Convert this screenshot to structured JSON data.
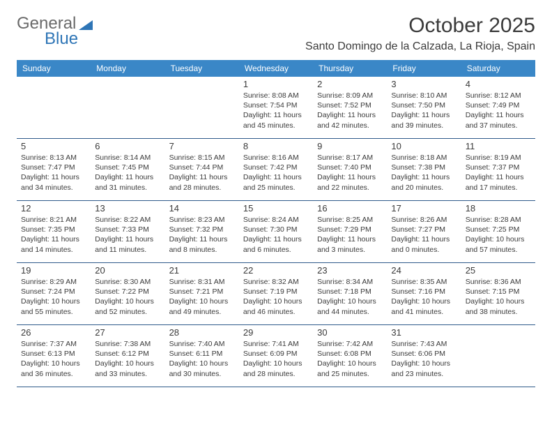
{
  "brand": {
    "general": "General",
    "blue": "Blue"
  },
  "title": "October 2025",
  "subtitle": "Santo Domingo de la Calzada, La Rioja, Spain",
  "colors": {
    "header_bg": "#3a87c7",
    "header_text": "#ffffff",
    "row_border": "#2e5a8a",
    "text": "#3a3a3a",
    "logo_gray": "#6a6a6a",
    "logo_blue": "#2e75b6",
    "page_bg": "#ffffff"
  },
  "typography": {
    "title_fontsize": 30,
    "subtitle_fontsize": 16,
    "header_fontsize": 12,
    "daynum_fontsize": 13,
    "info_fontsize": 10.5
  },
  "calendar": {
    "type": "table",
    "columns": [
      "Sunday",
      "Monday",
      "Tuesday",
      "Wednesday",
      "Thursday",
      "Friday",
      "Saturday"
    ],
    "rows": [
      [
        null,
        null,
        null,
        {
          "day": "1",
          "sunrise": "Sunrise: 8:08 AM",
          "sunset": "Sunset: 7:54 PM",
          "daylight": "Daylight: 11 hours and 45 minutes."
        },
        {
          "day": "2",
          "sunrise": "Sunrise: 8:09 AM",
          "sunset": "Sunset: 7:52 PM",
          "daylight": "Daylight: 11 hours and 42 minutes."
        },
        {
          "day": "3",
          "sunrise": "Sunrise: 8:10 AM",
          "sunset": "Sunset: 7:50 PM",
          "daylight": "Daylight: 11 hours and 39 minutes."
        },
        {
          "day": "4",
          "sunrise": "Sunrise: 8:12 AM",
          "sunset": "Sunset: 7:49 PM",
          "daylight": "Daylight: 11 hours and 37 minutes."
        }
      ],
      [
        {
          "day": "5",
          "sunrise": "Sunrise: 8:13 AM",
          "sunset": "Sunset: 7:47 PM",
          "daylight": "Daylight: 11 hours and 34 minutes."
        },
        {
          "day": "6",
          "sunrise": "Sunrise: 8:14 AM",
          "sunset": "Sunset: 7:45 PM",
          "daylight": "Daylight: 11 hours and 31 minutes."
        },
        {
          "day": "7",
          "sunrise": "Sunrise: 8:15 AM",
          "sunset": "Sunset: 7:44 PM",
          "daylight": "Daylight: 11 hours and 28 minutes."
        },
        {
          "day": "8",
          "sunrise": "Sunrise: 8:16 AM",
          "sunset": "Sunset: 7:42 PM",
          "daylight": "Daylight: 11 hours and 25 minutes."
        },
        {
          "day": "9",
          "sunrise": "Sunrise: 8:17 AM",
          "sunset": "Sunset: 7:40 PM",
          "daylight": "Daylight: 11 hours and 22 minutes."
        },
        {
          "day": "10",
          "sunrise": "Sunrise: 8:18 AM",
          "sunset": "Sunset: 7:38 PM",
          "daylight": "Daylight: 11 hours and 20 minutes."
        },
        {
          "day": "11",
          "sunrise": "Sunrise: 8:19 AM",
          "sunset": "Sunset: 7:37 PM",
          "daylight": "Daylight: 11 hours and 17 minutes."
        }
      ],
      [
        {
          "day": "12",
          "sunrise": "Sunrise: 8:21 AM",
          "sunset": "Sunset: 7:35 PM",
          "daylight": "Daylight: 11 hours and 14 minutes."
        },
        {
          "day": "13",
          "sunrise": "Sunrise: 8:22 AM",
          "sunset": "Sunset: 7:33 PM",
          "daylight": "Daylight: 11 hours and 11 minutes."
        },
        {
          "day": "14",
          "sunrise": "Sunrise: 8:23 AM",
          "sunset": "Sunset: 7:32 PM",
          "daylight": "Daylight: 11 hours and 8 minutes."
        },
        {
          "day": "15",
          "sunrise": "Sunrise: 8:24 AM",
          "sunset": "Sunset: 7:30 PM",
          "daylight": "Daylight: 11 hours and 6 minutes."
        },
        {
          "day": "16",
          "sunrise": "Sunrise: 8:25 AM",
          "sunset": "Sunset: 7:29 PM",
          "daylight": "Daylight: 11 hours and 3 minutes."
        },
        {
          "day": "17",
          "sunrise": "Sunrise: 8:26 AM",
          "sunset": "Sunset: 7:27 PM",
          "daylight": "Daylight: 11 hours and 0 minutes."
        },
        {
          "day": "18",
          "sunrise": "Sunrise: 8:28 AM",
          "sunset": "Sunset: 7:25 PM",
          "daylight": "Daylight: 10 hours and 57 minutes."
        }
      ],
      [
        {
          "day": "19",
          "sunrise": "Sunrise: 8:29 AM",
          "sunset": "Sunset: 7:24 PM",
          "daylight": "Daylight: 10 hours and 55 minutes."
        },
        {
          "day": "20",
          "sunrise": "Sunrise: 8:30 AM",
          "sunset": "Sunset: 7:22 PM",
          "daylight": "Daylight: 10 hours and 52 minutes."
        },
        {
          "day": "21",
          "sunrise": "Sunrise: 8:31 AM",
          "sunset": "Sunset: 7:21 PM",
          "daylight": "Daylight: 10 hours and 49 minutes."
        },
        {
          "day": "22",
          "sunrise": "Sunrise: 8:32 AM",
          "sunset": "Sunset: 7:19 PM",
          "daylight": "Daylight: 10 hours and 46 minutes."
        },
        {
          "day": "23",
          "sunrise": "Sunrise: 8:34 AM",
          "sunset": "Sunset: 7:18 PM",
          "daylight": "Daylight: 10 hours and 44 minutes."
        },
        {
          "day": "24",
          "sunrise": "Sunrise: 8:35 AM",
          "sunset": "Sunset: 7:16 PM",
          "daylight": "Daylight: 10 hours and 41 minutes."
        },
        {
          "day": "25",
          "sunrise": "Sunrise: 8:36 AM",
          "sunset": "Sunset: 7:15 PM",
          "daylight": "Daylight: 10 hours and 38 minutes."
        }
      ],
      [
        {
          "day": "26",
          "sunrise": "Sunrise: 7:37 AM",
          "sunset": "Sunset: 6:13 PM",
          "daylight": "Daylight: 10 hours and 36 minutes."
        },
        {
          "day": "27",
          "sunrise": "Sunrise: 7:38 AM",
          "sunset": "Sunset: 6:12 PM",
          "daylight": "Daylight: 10 hours and 33 minutes."
        },
        {
          "day": "28",
          "sunrise": "Sunrise: 7:40 AM",
          "sunset": "Sunset: 6:11 PM",
          "daylight": "Daylight: 10 hours and 30 minutes."
        },
        {
          "day": "29",
          "sunrise": "Sunrise: 7:41 AM",
          "sunset": "Sunset: 6:09 PM",
          "daylight": "Daylight: 10 hours and 28 minutes."
        },
        {
          "day": "30",
          "sunrise": "Sunrise: 7:42 AM",
          "sunset": "Sunset: 6:08 PM",
          "daylight": "Daylight: 10 hours and 25 minutes."
        },
        {
          "day": "31",
          "sunrise": "Sunrise: 7:43 AM",
          "sunset": "Sunset: 6:06 PM",
          "daylight": "Daylight: 10 hours and 23 minutes."
        },
        null
      ]
    ]
  }
}
